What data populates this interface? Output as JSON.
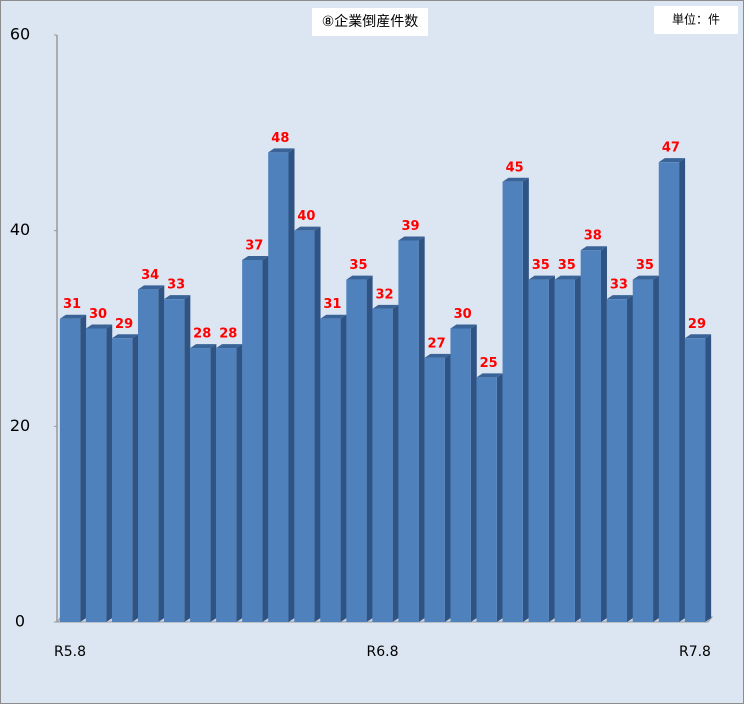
{
  "chart_data": {
    "type": "bar",
    "title": "⑧企業倒産件数",
    "unit_label": "単位：件",
    "categories": [
      "R5.8",
      null,
      null,
      null,
      null,
      null,
      null,
      null,
      null,
      null,
      null,
      null,
      "R6.8",
      null,
      null,
      null,
      null,
      null,
      null,
      null,
      null,
      null,
      null,
      null,
      "R7.8"
    ],
    "values": [
      31,
      30,
      29,
      34,
      33,
      28,
      28,
      37,
      48,
      40,
      31,
      35,
      32,
      39,
      27,
      30,
      25,
      45,
      35,
      35,
      38,
      33,
      35,
      47,
      29
    ],
    "color": "#4f81bd",
    "label_color": "#ff0000",
    "ylim": [
      0,
      60
    ],
    "yticks": [
      0,
      20,
      40,
      60
    ]
  }
}
